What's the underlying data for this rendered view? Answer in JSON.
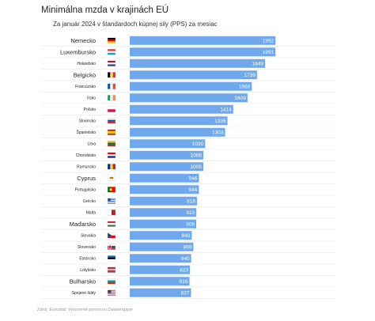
{
  "title": "Minimálna mzda v krajinách EÚ",
  "subtitle": "Za január 2024 v štandardoch kúpnej sily (PPS) za mesiac",
  "source": "Zdroj: Eurostat; Vytvorené pomocou Datawrapper",
  "colors": {
    "bar": "#6fa8ec",
    "bar_label": "#ffffff",
    "row_line": "#e2e2e2"
  },
  "chart_data": {
    "type": "bar",
    "orientation": "horizontal",
    "title": "Minimálna mzda v krajinách EÚ",
    "subtitle": "Za január 2024 v štandardoch kúpnej sily (PPS) za mesiac",
    "xlabel": "",
    "ylabel": "",
    "xlim": [
      0,
      2000
    ],
    "grid": false,
    "categories": [
      "Nemecko",
      "Luxembursko",
      "Holandsko",
      "Belgicko",
      "Francúzsko",
      "Írsko",
      "Poľsko",
      "Slovinsko",
      "Španielsko",
      "Litva",
      "Chorvátsko",
      "Rumunsko",
      "Cyprus",
      "Portugalsko",
      "Grécko",
      "Malta",
      "Maďarsko",
      "Slovakia",
      "Slovensko",
      "Estónsko",
      "Lotyšsko",
      "Bulharsko",
      "Spojené štáty"
    ],
    "flags": [
      "flag-germany",
      "flag-luxembourg",
      "flag-netherlands",
      "flag-belgium",
      "flag-france",
      "flag-ireland",
      "flag-poland",
      "flag-slovenia",
      "flag-spain",
      "flag-lithuania",
      "flag-croatia",
      "flag-romania",
      "flag-cyprus",
      "flag-portugal",
      "flag-greece",
      "flag-malta",
      "flag-hungary",
      "flag-czechia",
      "flag-slovakia",
      "flag-estonia",
      "flag-latvia",
      "flag-bulgaria",
      "flag-usa"
    ],
    "values": [
      1992,
      1991,
      1849,
      1739,
      1668,
      1609,
      1414,
      1336,
      1303,
      1030,
      1006,
      1005,
      946,
      944,
      918,
      910,
      908,
      848,
      869,
      840,
      823,
      816,
      837
    ],
    "value_labels": [
      "1992",
      "1991",
      "1849",
      "1739",
      "1668",
      "1609",
      "1414",
      "1336",
      "1303",
      "1030",
      "1006",
      "1005",
      "946",
      "944",
      "918",
      "910",
      "908",
      "848",
      "869",
      "840",
      "823",
      "816",
      "837"
    ]
  }
}
